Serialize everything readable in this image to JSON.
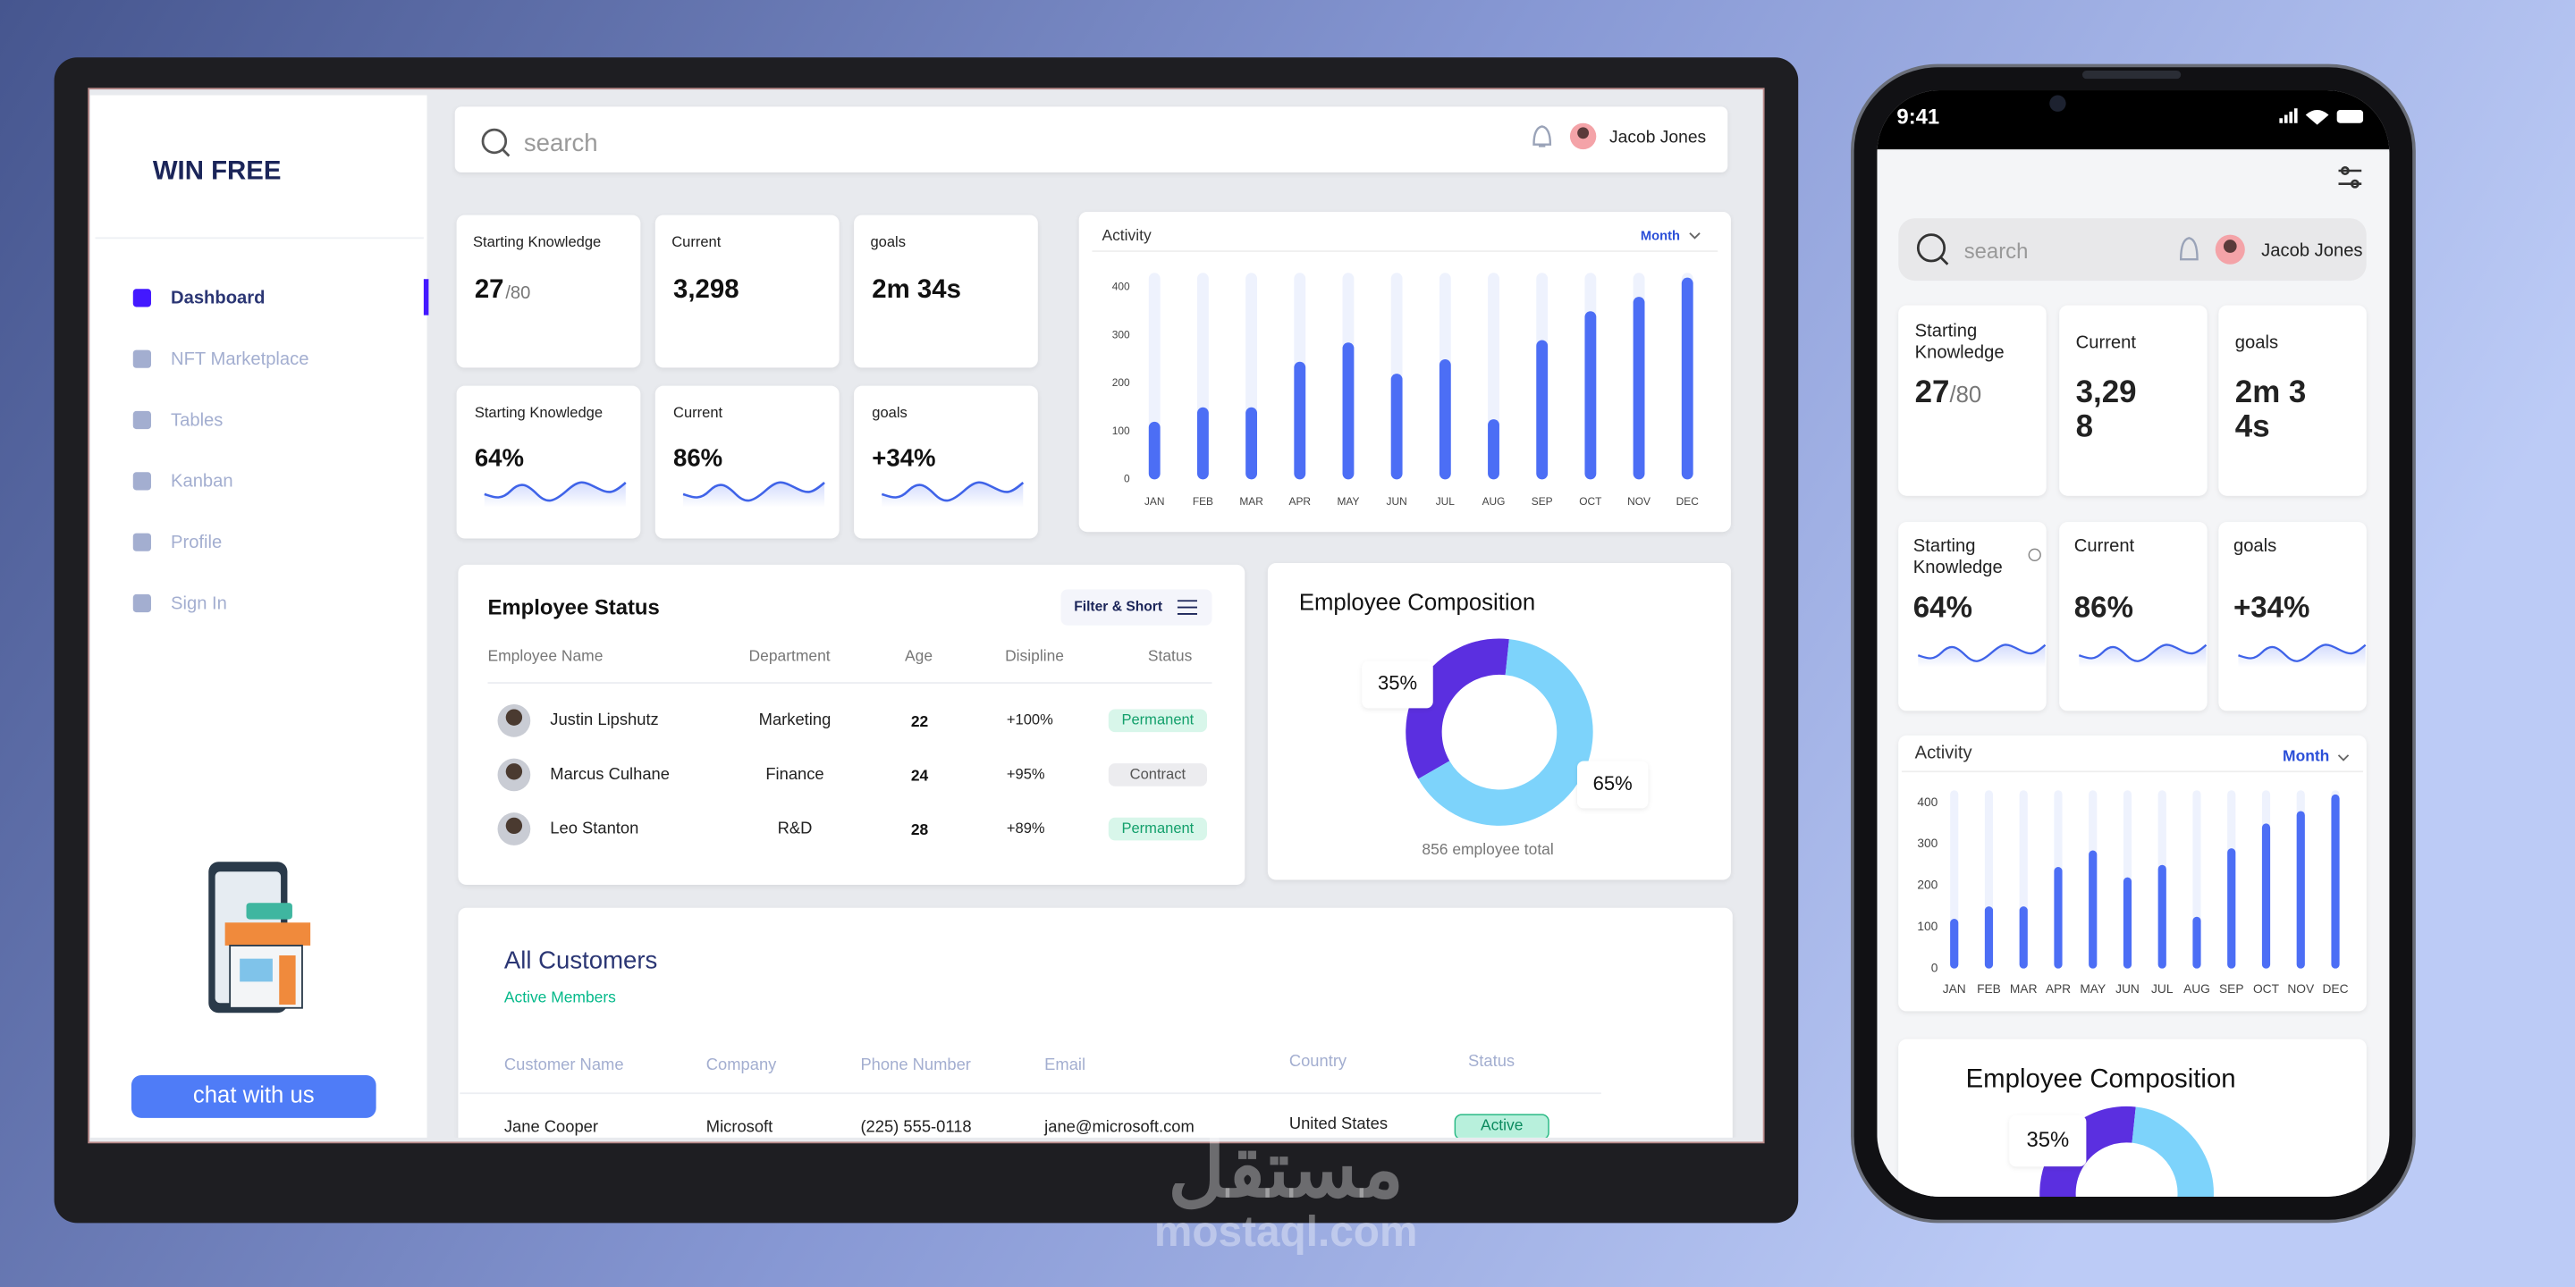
{
  "sidebar": {
    "brand": "WIN FREE",
    "nav": [
      "Dashboard",
      "NFT Marketplace",
      "Tables",
      "Kanban",
      "Profile",
      "Sign In"
    ]
  },
  "chat_button": "chat with us",
  "topbar": {
    "search": "search",
    "user": "Jacob Jones"
  },
  "stat_cards": [
    {
      "label": "Starting Knowledge",
      "value": "27",
      "total": "/80"
    },
    {
      "label": "Current",
      "value": "3,298"
    },
    {
      "label": "goals",
      "value": "2m 34s"
    }
  ],
  "kpi_cards": [
    {
      "label": "Starting Knowledge",
      "value": "64%"
    },
    {
      "label": "Current",
      "value": "86%"
    },
    {
      "label": "goals",
      "value": "+34%"
    }
  ],
  "activity": {
    "type": "bar",
    "title": "Activity",
    "period": "Month",
    "categories": [
      "JAN",
      "FEB",
      "MAR",
      "APR",
      "MAY",
      "JUN",
      "JUL",
      "AUG",
      "SEP",
      "OCT",
      "NOV",
      "DEC"
    ],
    "values": [
      120,
      150,
      150,
      245,
      285,
      220,
      250,
      125,
      290,
      350,
      380,
      420
    ],
    "color": "#4c6ef5",
    "ylim": [
      0,
      430
    ],
    "yticks": [
      0,
      100,
      200,
      300,
      400
    ]
  },
  "employee_status": {
    "title": "Employee Status",
    "filter": "Filter & Short",
    "columns": [
      "Employee Name",
      "Department",
      "Age",
      "Disipline",
      "Status"
    ],
    "rows": [
      [
        "Justin Lipshutz",
        "Marketing",
        "22",
        "+100%",
        "Permanent"
      ],
      [
        "Marcus Culhane",
        "Finance",
        "24",
        "+95%",
        "Contract"
      ],
      [
        "Leo Stanton",
        "R&D",
        "28",
        "+89%",
        "Permanent"
      ]
    ],
    "status_colors": [
      [
        "#d8f6ea",
        "#14a06c"
      ],
      [
        "#ececef",
        "#555555"
      ],
      [
        "#d8f6ea",
        "#14a06c"
      ]
    ]
  },
  "composition": {
    "type": "pie",
    "title": "Employee Composition",
    "values": [
      35,
      65
    ],
    "value_labels": [
      "35%",
      "65%"
    ],
    "colors": [
      "#5b2fe0",
      "#7dd3fb"
    ],
    "caption": "856 employee total"
  },
  "customers": {
    "title": "All Customers",
    "subtitle": "Active Members",
    "columns": [
      "Customer Name",
      "Company",
      "Phone Number",
      "Email",
      "Country",
      "Status"
    ],
    "rows": [
      [
        "Jane Cooper",
        "Microsoft",
        "(225) 555-0118",
        "jane@microsoft.com",
        "United States",
        "Active"
      ]
    ]
  },
  "phone": {
    "time": "9:41"
  },
  "watermark": {
    "arabic": "مستقل",
    "latin": "mostaql.com"
  }
}
